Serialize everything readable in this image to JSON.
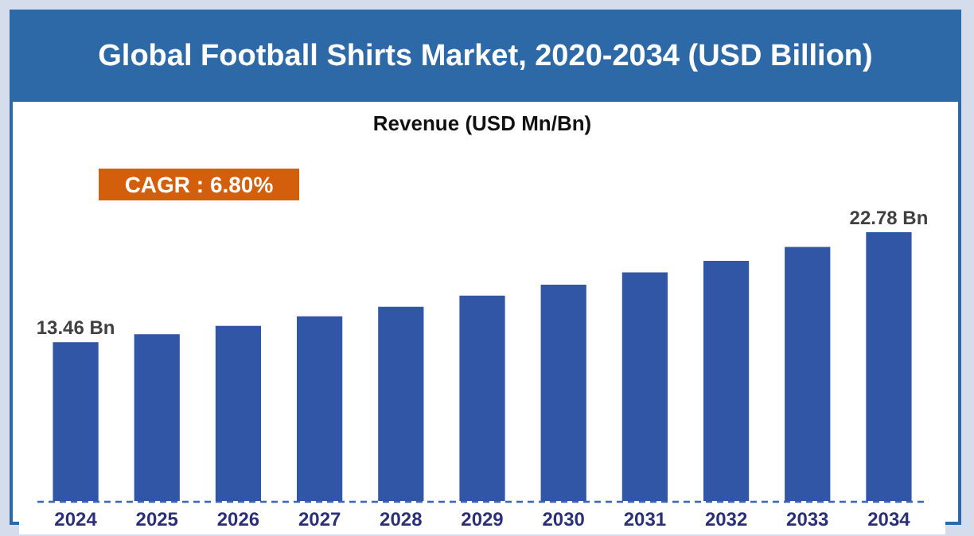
{
  "chart_data": {
    "type": "bar",
    "title": "Global Football Shirts Market, 2020-2034 (USD Billion)",
    "subtitle": "Revenue (USD Mn/Bn)",
    "annotations": [
      "CAGR : 6.80%"
    ],
    "categories": [
      "2024",
      "2025",
      "2026",
      "2027",
      "2028",
      "2029",
      "2030",
      "2031",
      "2032",
      "2033",
      "2034"
    ],
    "values": [
      13.46,
      14.13,
      14.85,
      15.65,
      16.46,
      17.4,
      18.34,
      19.37,
      20.36,
      21.53,
      22.78
    ],
    "value_labels": [
      "13.46 Bn",
      null,
      null,
      null,
      null,
      null,
      null,
      null,
      null,
      null,
      "22.78 Bn"
    ],
    "color": "#3156a5",
    "tick_labels": "x",
    "grid": false
  }
}
